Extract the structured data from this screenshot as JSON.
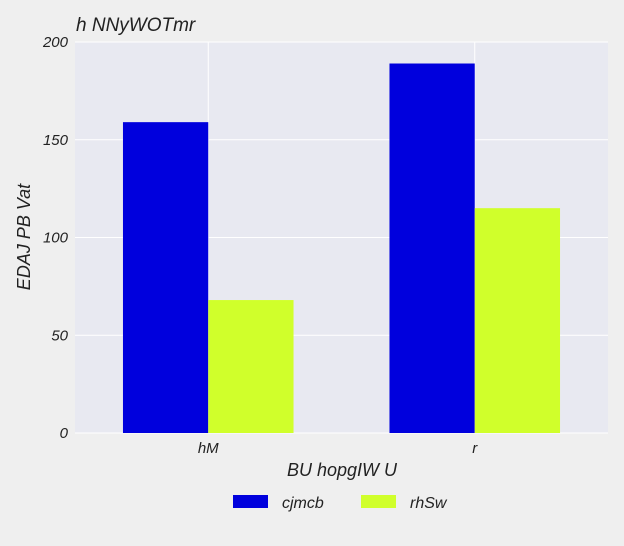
{
  "chart_data": {
    "type": "bar",
    "title": "h  NNyWOTmr",
    "xlabel": "BU hopgIW U",
    "ylabel": "EDAJ PB Vat",
    "categories": [
      "hM",
      "r"
    ],
    "series": [
      {
        "name": "cjmcb",
        "values": [
          159,
          189
        ],
        "color": "#0000dd"
      },
      {
        "name": "rhSw",
        "values": [
          68,
          115
        ],
        "color": "#d0ff2b"
      }
    ],
    "ylim": [
      0,
      200
    ],
    "yticks": [
      0,
      50,
      100,
      150,
      200
    ],
    "grid": true,
    "legend_position": "bottom-center",
    "plot_background": "#e8e9f1",
    "grid_color": "#ffffff"
  }
}
